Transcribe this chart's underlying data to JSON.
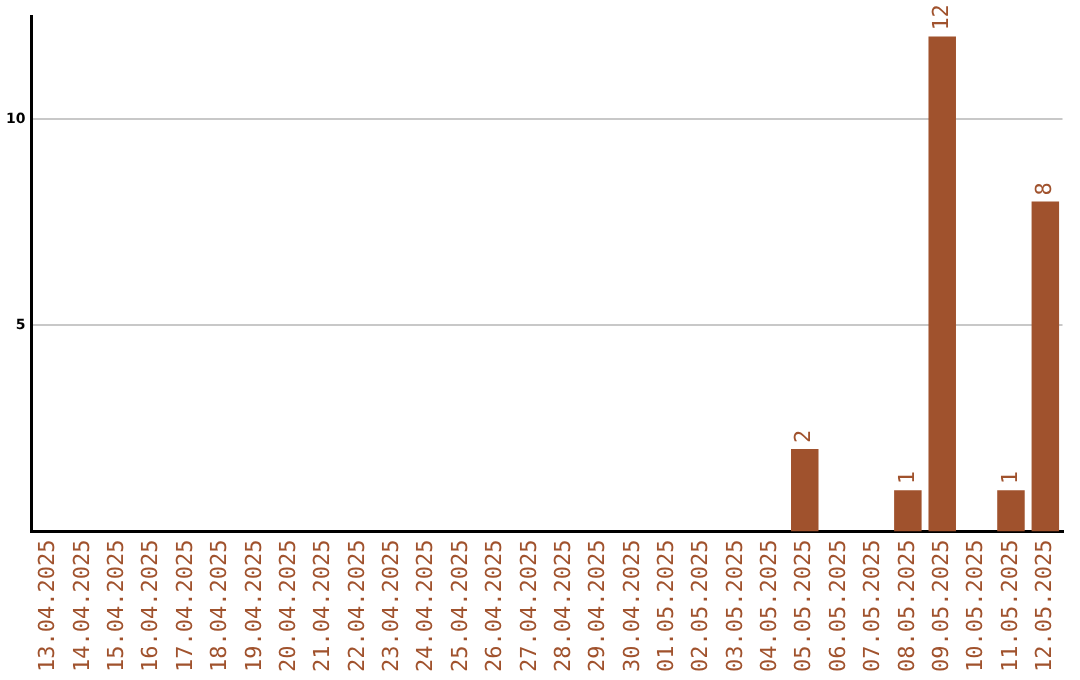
{
  "chart_data": {
    "type": "bar",
    "categories": [
      "13.04.2025",
      "14.04.2025",
      "15.04.2025",
      "16.04.2025",
      "17.04.2025",
      "18.04.2025",
      "19.04.2025",
      "20.04.2025",
      "21.04.2025",
      "22.04.2025",
      "23.04.2025",
      "24.04.2025",
      "25.04.2025",
      "26.04.2025",
      "27.04.2025",
      "28.04.2025",
      "29.04.2025",
      "30.04.2025",
      "01.05.2025",
      "02.05.2025",
      "03.05.2025",
      "04.05.2025",
      "05.05.2025",
      "06.05.2025",
      "07.05.2025",
      "08.05.2025",
      "09.05.2025",
      "10.05.2025",
      "11.05.2025",
      "12.05.2025"
    ],
    "values": [
      0,
      0,
      0,
      0,
      0,
      0,
      0,
      0,
      0,
      0,
      0,
      0,
      0,
      0,
      0,
      0,
      0,
      0,
      0,
      0,
      0,
      0,
      2,
      0,
      0,
      1,
      12,
      0,
      1,
      8
    ],
    "value_labels": [
      null,
      null,
      null,
      null,
      null,
      null,
      null,
      null,
      null,
      null,
      null,
      null,
      null,
      null,
      null,
      null,
      null,
      null,
      null,
      null,
      null,
      null,
      "2",
      null,
      null,
      "1",
      "12",
      null,
      "1",
      "8"
    ],
    "color": "#a0522d",
    "ylim": [
      0,
      12.5
    ],
    "yticks": [
      5,
      10
    ],
    "grid": "y",
    "legend": false
  }
}
